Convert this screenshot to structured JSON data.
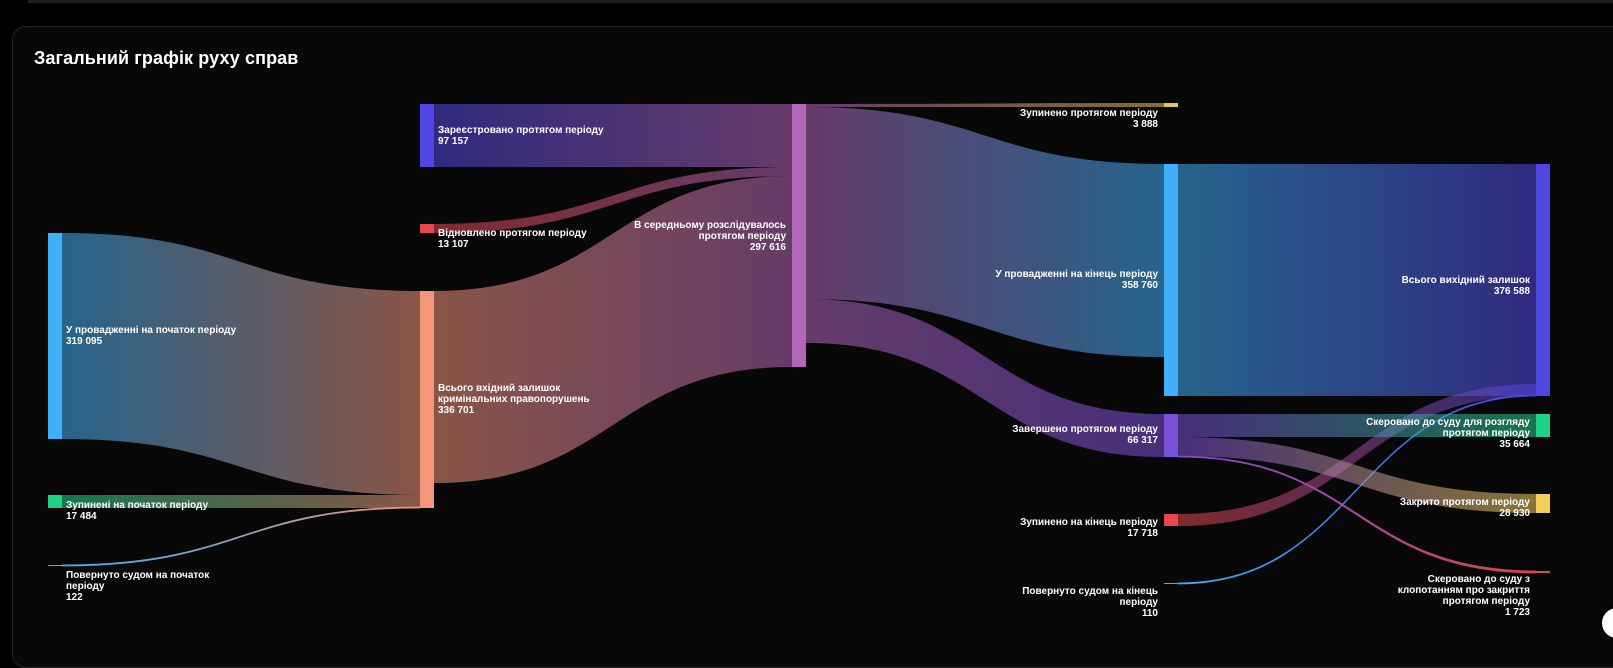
{
  "title": "Загальний графік руху справ",
  "chart_data": {
    "type": "sankey",
    "title": "Загальний графік руху справ",
    "nodes": [
      {
        "id": "start_in",
        "lines": [
          "У провадженні на початок періоду"
        ],
        "value": "319 095",
        "color": "#3fb0f7"
      },
      {
        "id": "start_stop",
        "lines": [
          "Зупинені  на початок періоду"
        ],
        "value": "17 484",
        "color": "#1fd18a"
      },
      {
        "id": "start_ret",
        "lines": [
          "Повернуто судом на початок",
          "періоду"
        ],
        "value": "122",
        "color": "#3fb0f7"
      },
      {
        "id": "reg",
        "lines": [
          "Зареєстровано протягом періоду"
        ],
        "value": "97 157",
        "color": "#5046e0"
      },
      {
        "id": "renew",
        "lines": [
          "Відновлено протягом періоду"
        ],
        "value": "13 107",
        "color": "#e5484d"
      },
      {
        "id": "total_in",
        "lines": [
          "Всього вхідний залишок",
          "кримінальних правопорушень"
        ],
        "value": "336 701",
        "color": "#f5957a"
      },
      {
        "id": "avg",
        "lines": [
          "В середньому розслідувалось",
          "протягом періоду"
        ],
        "value": "297 616",
        "color": "#b166b8"
      },
      {
        "id": "stop_period",
        "lines": [
          "Зупинено протягом періоду"
        ],
        "value": "3 888",
        "color": "#e6c84a"
      },
      {
        "id": "end_in",
        "lines": [
          "У провадженні на кінець періоду"
        ],
        "value": "358 760",
        "color": "#3fb0f7"
      },
      {
        "id": "done",
        "lines": [
          "Завершено протягом періоду"
        ],
        "value": "66 317",
        "color": "#7a4fd9"
      },
      {
        "id": "end_stop",
        "lines": [
          "Зупинено на кінець періоду"
        ],
        "value": "17 718",
        "color": "#e5484d"
      },
      {
        "id": "end_ret",
        "lines": [
          "Повернуто судом на кінець",
          "періоду"
        ],
        "value": "110",
        "color": "#3fb0f7"
      },
      {
        "id": "total_out",
        "lines": [
          "Всього вихідний залишок"
        ],
        "value": "376 588",
        "color": "#5046e0"
      },
      {
        "id": "court",
        "lines": [
          "Скеровано до суду для розгляду",
          "протягом періоду"
        ],
        "value": "35 664",
        "color": "#1fd18a"
      },
      {
        "id": "closed",
        "lines": [
          "Закрито протягом періоду"
        ],
        "value": "28 930",
        "color": "#f2cf5b"
      },
      {
        "id": "court_close",
        "lines": [
          "Скеровано до суду з",
          "клопотанням про закриття",
          "протягом періоду"
        ],
        "value": "1 723",
        "color": "#e5484d"
      }
    ],
    "links": [
      {
        "source": "start_in",
        "target": "total_in",
        "value": 319095
      },
      {
        "source": "start_stop",
        "target": "total_in",
        "value": 17484
      },
      {
        "source": "start_ret",
        "target": "total_in",
        "value": 122
      },
      {
        "source": "reg",
        "target": "avg",
        "value": 97157
      },
      {
        "source": "renew",
        "target": "avg",
        "value": 13107
      },
      {
        "source": "total_in",
        "target": "avg",
        "value": 336701
      },
      {
        "source": "avg",
        "target": "stop_period",
        "value": 3888
      },
      {
        "source": "avg",
        "target": "end_in",
        "value": 358760
      },
      {
        "source": "avg",
        "target": "done",
        "value": 66317
      },
      {
        "source": "end_in",
        "target": "total_out",
        "value": 358760
      },
      {
        "source": "end_stop",
        "target": "total_out",
        "value": 17718
      },
      {
        "source": "end_ret",
        "target": "total_out",
        "value": 110
      },
      {
        "source": "done",
        "target": "court",
        "value": 35664
      },
      {
        "source": "done",
        "target": "closed",
        "value": 28930
      },
      {
        "source": "done",
        "target": "court_close",
        "value": 1723
      }
    ]
  }
}
